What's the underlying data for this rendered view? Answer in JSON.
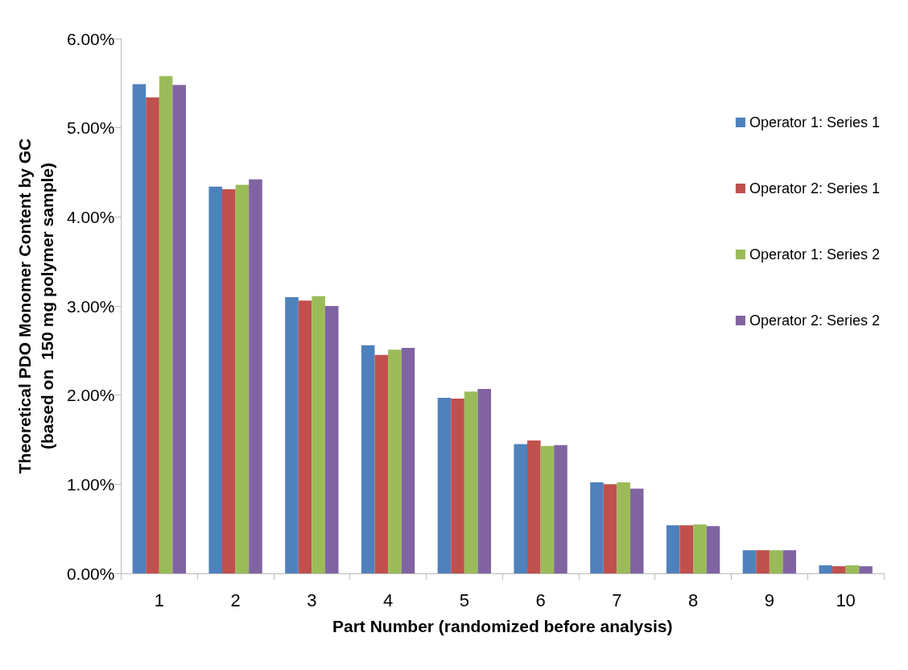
{
  "chart_data": {
    "type": "bar",
    "xlabel": "Part Number (randomized before analysis)",
    "ylabel": "Theoretical PDO Monomer Content by GC\n(based on  150 mg polymer sample)",
    "categories": [
      "1",
      "2",
      "3",
      "4",
      "5",
      "6",
      "7",
      "8",
      "9",
      "10"
    ],
    "series": [
      {
        "name": "Operator 1: Series 1",
        "color": "#4f81bd",
        "values": [
          5.49,
          4.34,
          3.1,
          2.56,
          1.97,
          1.45,
          1.02,
          0.54,
          0.26,
          0.09
        ]
      },
      {
        "name": "Operator 2: Series 1",
        "color": "#c0504d",
        "values": [
          5.34,
          4.31,
          3.06,
          2.45,
          1.96,
          1.49,
          1.0,
          0.54,
          0.26,
          0.08
        ]
      },
      {
        "name": "Operator 1: Series 2",
        "color": "#9bbb59",
        "values": [
          5.58,
          4.36,
          3.11,
          2.51,
          2.04,
          1.43,
          1.02,
          0.55,
          0.26,
          0.09
        ]
      },
      {
        "name": "Operator 2: Series 2",
        "color": "#8064a2",
        "values": [
          5.48,
          4.42,
          3.0,
          2.53,
          2.07,
          1.44,
          0.95,
          0.53,
          0.26,
          0.08
        ]
      }
    ],
    "ylim": [
      0,
      6
    ],
    "yticks": [
      {
        "value": 0,
        "label": "0.00%"
      },
      {
        "value": 1,
        "label": "1.00%"
      },
      {
        "value": 2,
        "label": "2.00%"
      },
      {
        "value": 3,
        "label": "3.00%"
      },
      {
        "value": 4,
        "label": "4.00%"
      },
      {
        "value": 5,
        "label": "5.00%"
      },
      {
        "value": 6,
        "label": "6.00%"
      }
    ],
    "grid": false,
    "legend": "right"
  }
}
